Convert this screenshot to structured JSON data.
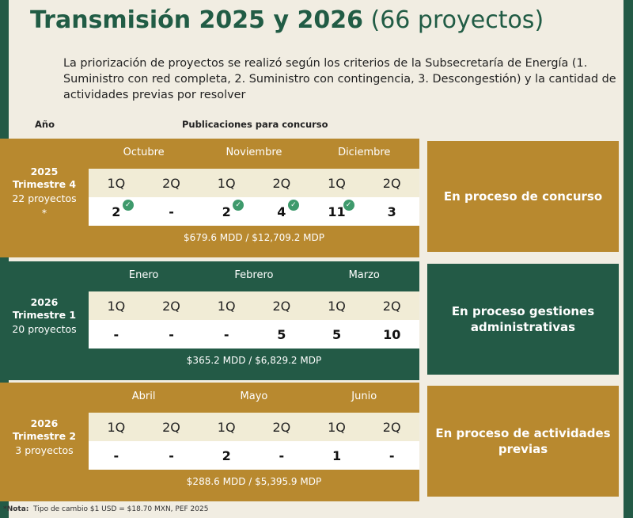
{
  "title": {
    "bold": "Transmisión 2025 y 2026",
    "rest": "(66 proyectos)"
  },
  "intro": "La priorización de proyectos se realizó según los criterios de la Subsecretaría de Energía (1. Suministro con red completa, 2. Suministro con contingencia, 3. Descongestión) y la cantidad de actividades previas por resolver",
  "headers": {
    "year": "Año",
    "publications": "Publicaciones para concurso"
  },
  "periods": [
    {
      "year": "2025",
      "quarter": "Trimestre 4",
      "count": "22 proyectos",
      "asterisk": "*",
      "months": [
        "Octubre",
        "Noviembre",
        "Diciembre"
      ],
      "quincenas": [
        "1Q",
        "2Q",
        "1Q",
        "2Q",
        "1Q",
        "2Q"
      ],
      "values": [
        "2",
        "-",
        "2",
        "4",
        "11",
        "3"
      ],
      "checked": [
        true,
        false,
        true,
        true,
        true,
        false
      ],
      "amount": "$679.6 MDD / $12,709.2  MDP",
      "status": "En proceso de concurso",
      "color": "#b8892f"
    },
    {
      "year": "2026",
      "quarter": "Trimestre 1",
      "count": "20 proyectos",
      "asterisk": "",
      "months": [
        "Enero",
        "Febrero",
        "Marzo"
      ],
      "quincenas": [
        "1Q",
        "2Q",
        "1Q",
        "2Q",
        "1Q",
        "2Q"
      ],
      "values": [
        "-",
        "-",
        "-",
        "5",
        "5",
        "10"
      ],
      "checked": [
        false,
        false,
        false,
        false,
        false,
        false
      ],
      "amount": "$365.2 MDD / $6,829.2 MDP",
      "status": "En proceso gestiones administrativas",
      "color": "#235a46"
    },
    {
      "year": "2026",
      "quarter": "Trimestre 2",
      "count": "3 proyectos",
      "asterisk": "",
      "months": [
        "Abril",
        "Mayo",
        "Junio"
      ],
      "quincenas": [
        "1Q",
        "2Q",
        "1Q",
        "2Q",
        "1Q",
        "2Q"
      ],
      "values": [
        "-",
        "-",
        "2",
        "-",
        "1",
        "-"
      ],
      "checked": [
        false,
        false,
        false,
        false,
        false,
        false
      ],
      "amount": "$288.6 MDD / $5,395.9 MDP",
      "status": "En proceso de actividades previas",
      "color": "#b8892f"
    }
  ],
  "note": {
    "label": "*Nota:",
    "text": "Tipo de cambio  $1 USD  =  $18.70 MXN, PEF 2025"
  },
  "colors": {
    "gold": "#b8892f",
    "green": "#235a46",
    "check": "#3e9a6c",
    "title": "#215c45"
  },
  "icons": {
    "check": "check-circle-icon"
  }
}
